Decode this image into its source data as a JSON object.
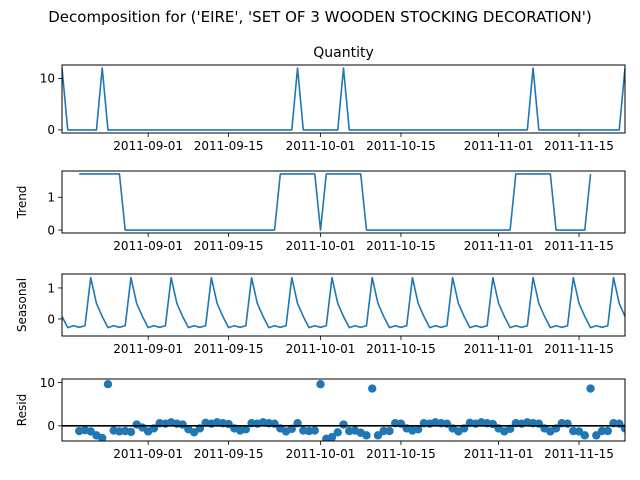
{
  "figure": {
    "suptitle": "Decomposition for ('EIRE', 'SET OF 3 WOODEN STOCKING DECORATION')"
  },
  "colors": {
    "series": "#1f77b4",
    "axes": "#000000",
    "background": "#ffffff"
  },
  "chart_data": [
    {
      "type": "line",
      "title": "Quantity",
      "ylabel": "",
      "x_axis": "date",
      "xlim": [
        "2011-08-17",
        "2011-11-23"
      ],
      "x_ticks": [
        "2011-09-01",
        "2011-09-15",
        "2011-10-01",
        "2011-10-15",
        "2011-11-01",
        "2011-11-15"
      ],
      "y_ticks": [
        0,
        10
      ],
      "ylim": [
        -0.6,
        12.6
      ],
      "grid": false,
      "series": [
        {
          "points": [
            [
              "2011-08-17",
              12
            ],
            [
              "2011-08-18",
              0
            ],
            [
              "2011-08-23",
              0
            ],
            [
              "2011-08-24",
              12
            ],
            [
              "2011-08-25",
              0
            ],
            [
              "2011-09-26",
              0
            ],
            [
              "2011-09-27",
              12
            ],
            [
              "2011-09-28",
              0
            ],
            [
              "2011-10-04",
              0
            ],
            [
              "2011-10-05",
              12
            ],
            [
              "2011-10-06",
              0
            ],
            [
              "2011-11-06",
              0
            ],
            [
              "2011-11-07",
              12
            ],
            [
              "2011-11-08",
              0
            ],
            [
              "2011-11-22",
              0
            ],
            [
              "2011-11-23",
              12
            ]
          ]
        }
      ]
    },
    {
      "type": "line",
      "title": "",
      "ylabel": "Trend",
      "x_axis": "date",
      "xlim": [
        "2011-08-17",
        "2011-11-23"
      ],
      "x_ticks": [
        "2011-09-01",
        "2011-09-15",
        "2011-10-01",
        "2011-10-15",
        "2011-11-01",
        "2011-11-15"
      ],
      "y_ticks": [
        0,
        1
      ],
      "ylim": [
        -0.09,
        1.8
      ],
      "grid": false,
      "series": [
        {
          "points": [
            [
              "2011-08-20",
              1.71
            ],
            [
              "2011-08-27",
              1.71
            ],
            [
              "2011-08-28",
              0
            ],
            [
              "2011-09-23",
              0
            ],
            [
              "2011-09-24",
              1.71
            ],
            [
              "2011-09-30",
              1.71
            ],
            [
              "2011-10-01",
              0
            ],
            [
              "2011-10-02",
              1.71
            ],
            [
              "2011-10-08",
              1.71
            ],
            [
              "2011-10-09",
              0
            ],
            [
              "2011-11-03",
              0
            ],
            [
              "2011-11-04",
              1.71
            ],
            [
              "2011-11-10",
              1.71
            ],
            [
              "2011-11-11",
              0
            ],
            [
              "2011-11-16",
              0
            ],
            [
              "2011-11-17",
              1.71
            ]
          ]
        }
      ]
    },
    {
      "type": "line",
      "title": "",
      "ylabel": "Seasonal",
      "x_axis": "date",
      "xlim": [
        "2011-08-17",
        "2011-11-23"
      ],
      "x_ticks": [
        "2011-09-01",
        "2011-09-15",
        "2011-10-01",
        "2011-10-15",
        "2011-11-01",
        "2011-11-15"
      ],
      "y_ticks": [
        0,
        1
      ],
      "ylim": [
        -0.55,
        1.45
      ],
      "grid": false,
      "season_period_days": 7,
      "season_pattern": [
        0.08,
        -0.28,
        -0.22,
        -0.27,
        -0.22,
        1.33,
        0.5
      ],
      "season_start": "2011-08-17"
    },
    {
      "type": "scatter",
      "title": "",
      "ylabel": "Resid",
      "x_axis": "date",
      "xlim": [
        "2011-08-17",
        "2011-11-23"
      ],
      "x_ticks": [
        "2011-09-01",
        "2011-09-15",
        "2011-10-01",
        "2011-10-15",
        "2011-11-01",
        "2011-11-15"
      ],
      "y_ticks": [
        0,
        10
      ],
      "ylim": [
        -3.5,
        10.8
      ],
      "grid": false,
      "reference_line_y": 0,
      "first_date": "2011-08-20",
      "values": [
        -1.2,
        -1.0,
        -1.3,
        -2.2,
        -2.8,
        9.6,
        -1.1,
        -1.3,
        -1.2,
        -1.4,
        0.3,
        -0.4,
        -1.3,
        -0.6,
        0.6,
        0.5,
        0.8,
        0.5,
        0.3,
        -0.8,
        -1.5,
        -0.6,
        0.7,
        0.5,
        0.8,
        0.6,
        0.4,
        -0.6,
        -1.1,
        -0.8,
        0.6,
        0.5,
        0.8,
        0.6,
        0.5,
        -0.6,
        -1.3,
        -0.7,
        0.6,
        -1.1,
        -1.2,
        -1.1,
        9.6,
        -3.0,
        -2.6,
        -1.5,
        0.3,
        -1.2,
        -1.1,
        -1.6,
        -2.2,
        8.6,
        -2.2,
        -1.2,
        -1.2,
        0.6,
        0.5,
        -0.6,
        -1.1,
        -0.8,
        0.6,
        0.5,
        0.8,
        0.6,
        0.5,
        -0.6,
        -1.3,
        -0.6,
        0.7,
        0.5,
        0.8,
        0.6,
        0.4,
        -0.6,
        -1.3,
        -0.7,
        0.6,
        0.5,
        0.8,
        0.6,
        0.5,
        -0.6,
        -1.3,
        -0.6,
        0.6,
        0.5,
        -1.2,
        -1.3,
        -2.2,
        8.6,
        -2.2,
        -1.2,
        -1.2,
        0.6,
        0.5,
        -0.6,
        -1.3,
        -0.6,
        0.5
      ]
    }
  ]
}
